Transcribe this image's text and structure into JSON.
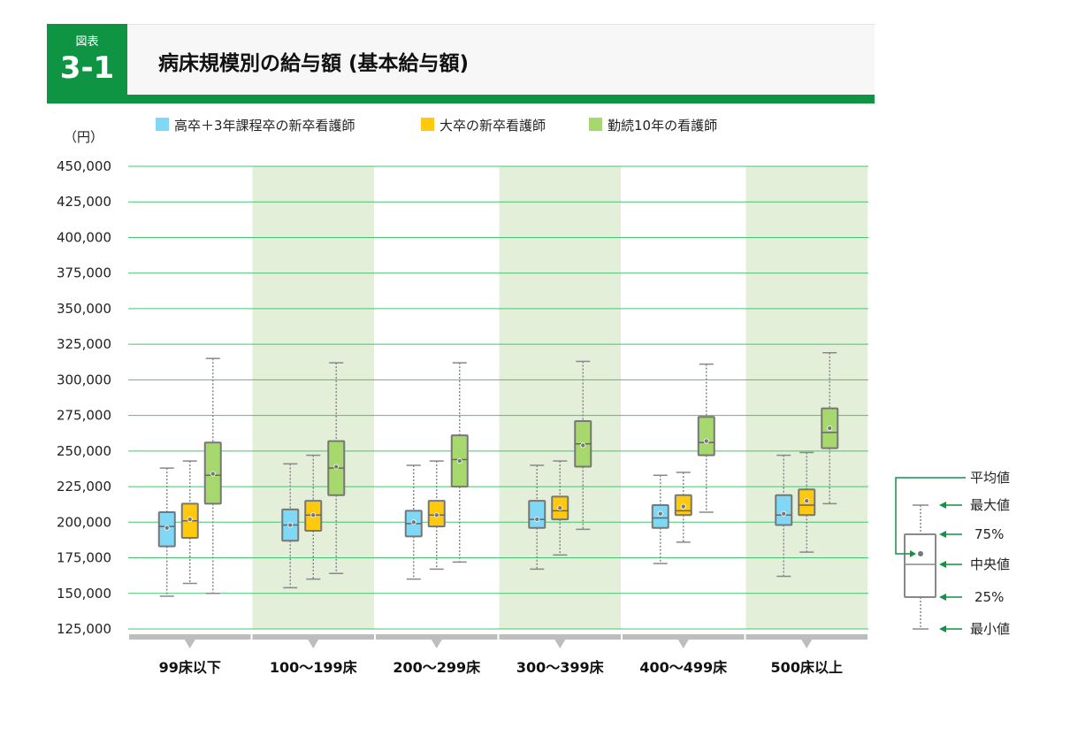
{
  "header": {
    "figure_label": "図表",
    "figure_number": "3-1",
    "title": "病床規模別の給与額 (基本給与額)"
  },
  "colors": {
    "accent": "#0f9444",
    "band": "#e3efd8",
    "grid": "#43c66f",
    "axis": "#bdbdbd",
    "box_stroke": "#777777"
  },
  "chart_data": {
    "type": "boxplot",
    "title": "病床規模別の給与額 (基本給与額)",
    "ylabel": "（円）",
    "ylim": [
      125000,
      450000
    ],
    "yticks": [
      125000,
      150000,
      175000,
      200000,
      225000,
      250000,
      275000,
      300000,
      325000,
      350000,
      375000,
      400000,
      425000,
      450000
    ],
    "ytick_labels": [
      "125,000",
      "150,000",
      "175,000",
      "200,000",
      "225,000",
      "250,000",
      "275,000",
      "300,000",
      "325,000",
      "350,000",
      "375,000",
      "400,000",
      "425,000",
      "450,000"
    ],
    "grid": true,
    "legend_position": "top",
    "categories": [
      "99床以下",
      "100～199床",
      "200～299床",
      "300～399床",
      "400～499床",
      "500床以上"
    ],
    "series": [
      {
        "name": "高卒＋3年課程卒の新卒看護師",
        "color": "#7fd8f6",
        "min": [
          148000,
          154000,
          160000,
          167000,
          171000,
          162000
        ],
        "q1": [
          183000,
          187000,
          190000,
          196000,
          196000,
          198000
        ],
        "median": [
          197000,
          198000,
          199000,
          202000,
          203000,
          205000
        ],
        "q3": [
          207000,
          209000,
          208000,
          215000,
          212000,
          219000
        ],
        "max": [
          238000,
          241000,
          240000,
          240000,
          233000,
          247000
        ],
        "mean": [
          196000,
          198000,
          200000,
          202000,
          206000,
          206000
        ]
      },
      {
        "name": "大卒の新卒看護師",
        "color": "#ffc90e",
        "min": [
          157000,
          160000,
          167000,
          177000,
          186000,
          179000
        ],
        "q1": [
          189000,
          194000,
          197000,
          202000,
          205000,
          205000
        ],
        "median": [
          201000,
          205000,
          205000,
          208000,
          208000,
          212000
        ],
        "q3": [
          213000,
          215000,
          215000,
          218000,
          219000,
          223000
        ],
        "max": [
          243000,
          247000,
          243000,
          243000,
          235000,
          249000
        ],
        "mean": [
          202000,
          205000,
          205000,
          210000,
          211000,
          215000
        ]
      },
      {
        "name": "勤続10年の看護師",
        "color": "#a6d86e",
        "min": [
          150000,
          164000,
          172000,
          195000,
          207000,
          213000
        ],
        "q1": [
          213000,
          219000,
          225000,
          239000,
          247000,
          252000
        ],
        "median": [
          233000,
          238000,
          244000,
          255000,
          256000,
          263000
        ],
        "q3": [
          256000,
          257000,
          261000,
          271000,
          274000,
          280000
        ],
        "max": [
          315000,
          312000,
          312000,
          313000,
          311000,
          319000
        ],
        "mean": [
          234000,
          239000,
          243000,
          254000,
          257000,
          266000
        ]
      }
    ],
    "key": {
      "labels": {
        "mean": "平均値",
        "max": "最大値",
        "q3": "75%",
        "median": "中央値",
        "q1": "25%",
        "min": "最小値"
      }
    }
  }
}
